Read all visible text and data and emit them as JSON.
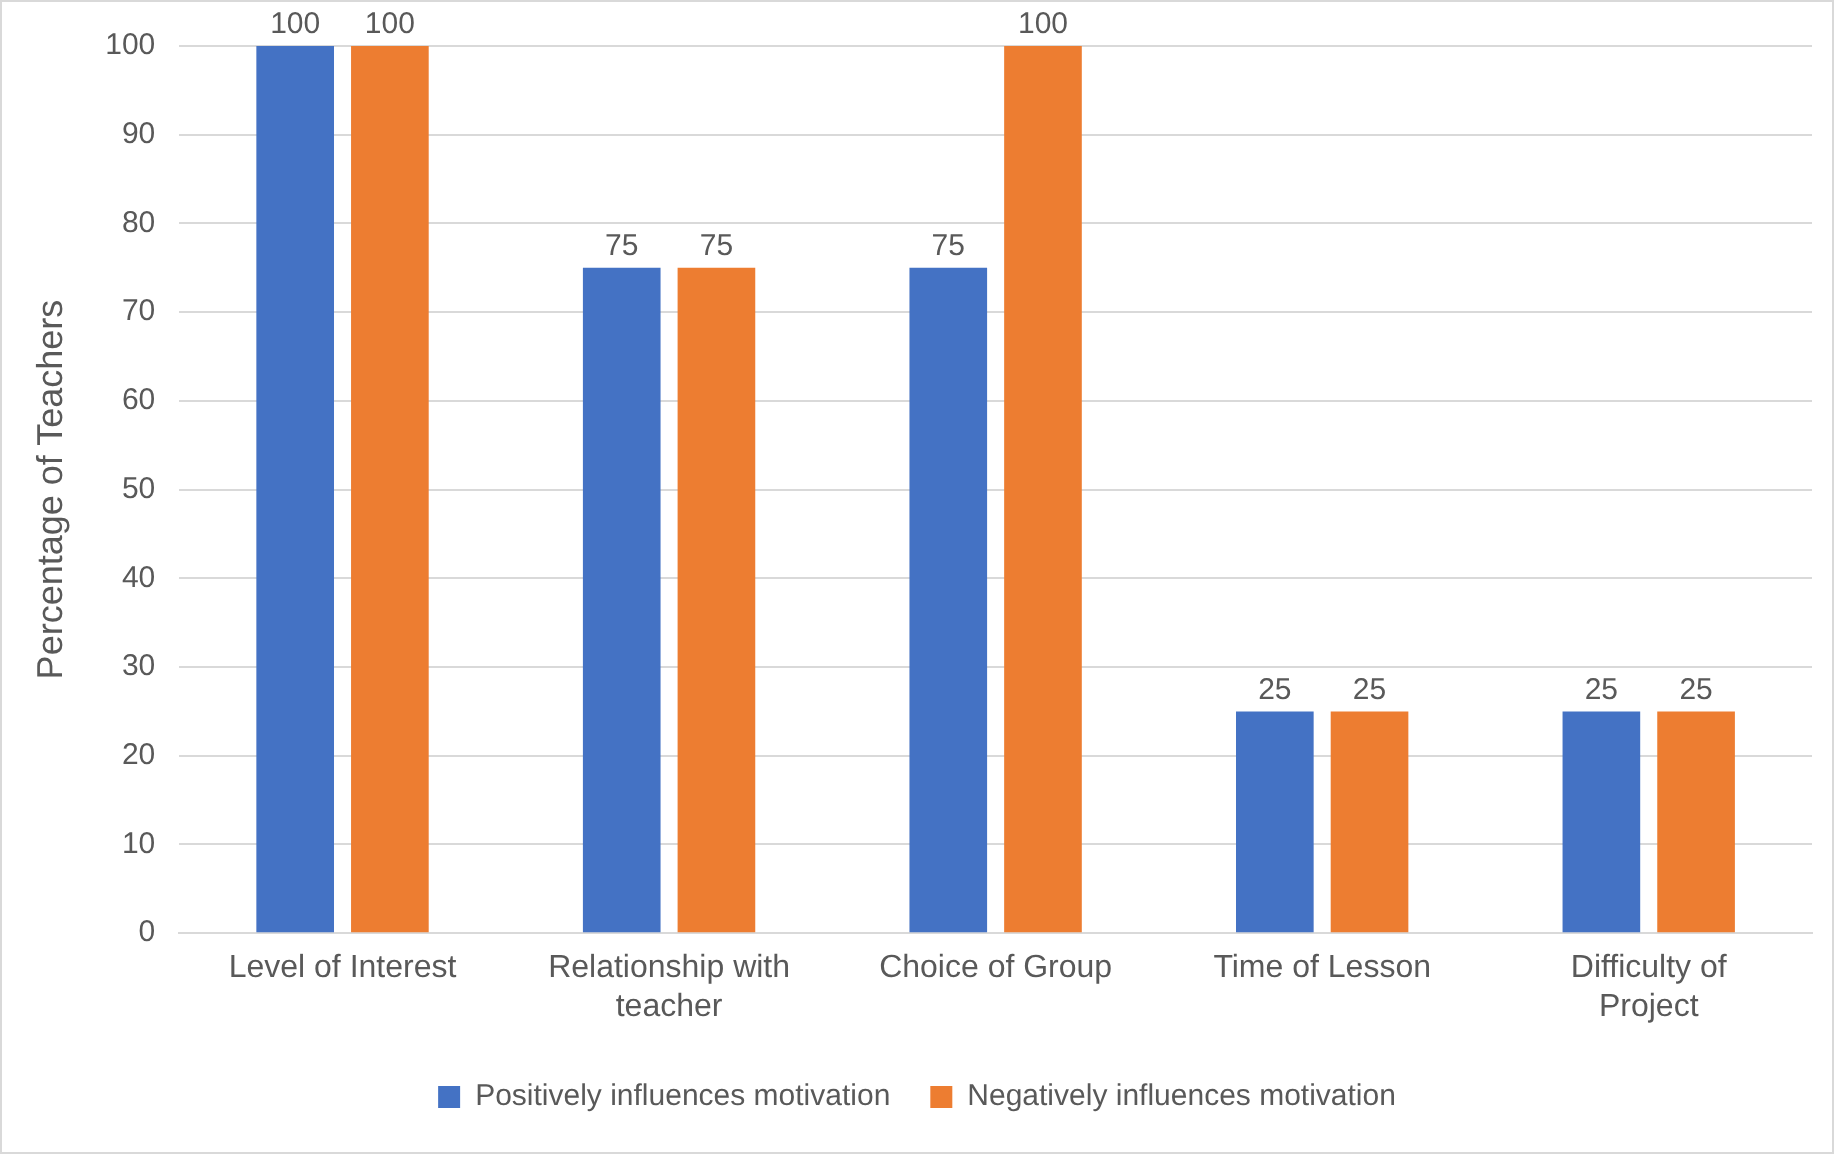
{
  "chart_data": {
    "type": "bar",
    "ylabel": "Percentage of Teachers",
    "categories": [
      "Level of Interest",
      "Relationship with teacher",
      "Choice of Group",
      "Time of Lesson",
      "Difficulty of Project"
    ],
    "series": [
      {
        "name": "Positively influences motivation",
        "color": "#4472c4",
        "values": [
          100,
          75,
          75,
          25,
          25
        ]
      },
      {
        "name": "Negatively influences motivation",
        "color": "#ed7d31",
        "values": [
          100,
          75,
          100,
          25,
          25
        ]
      }
    ],
    "ylim": [
      0,
      100
    ],
    "yticks": [
      0,
      10,
      20,
      30,
      40,
      50,
      60,
      70,
      80,
      90,
      100
    ],
    "grid": "y",
    "legend": "bottom",
    "data_labels": true
  }
}
